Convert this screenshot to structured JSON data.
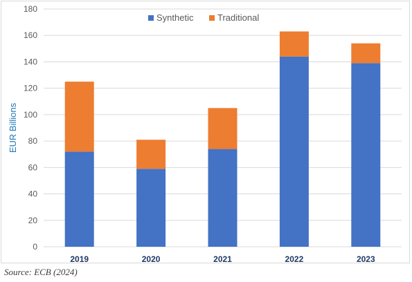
{
  "chart_data": {
    "type": "bar",
    "stacked": true,
    "categories": [
      "2019",
      "2020",
      "2021",
      "2022",
      "2023"
    ],
    "series": [
      {
        "name": "Synthetic",
        "color": "#4472C4",
        "values": [
          72,
          59,
          74,
          144,
          139
        ]
      },
      {
        "name": "Traditional",
        "color": "#ED7D31",
        "values": [
          53,
          22,
          31,
          19,
          15
        ]
      }
    ],
    "ylabel": "EUR Billions",
    "ylim": [
      0,
      180
    ],
    "yticks": [
      0,
      20,
      40,
      60,
      80,
      100,
      120,
      140,
      160,
      180
    ],
    "grid": true,
    "legend_position": "top-center"
  },
  "source_note": "Source: ECB (2024)",
  "colors": {
    "axis_text": "#595959",
    "ylabel_text": "#1F77B4",
    "gridline": "#d9d9d9",
    "category_text": "#1F3864"
  }
}
